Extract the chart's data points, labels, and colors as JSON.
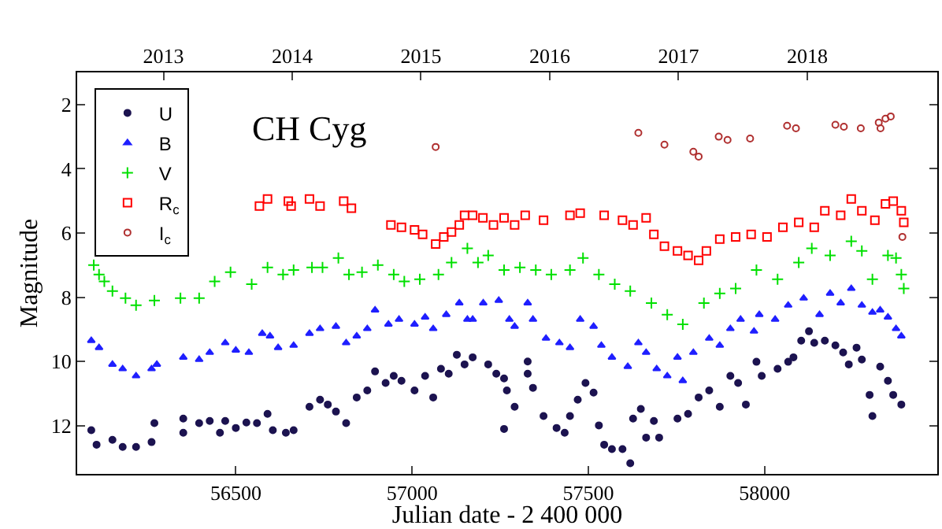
{
  "chart_data": {
    "type": "scatter",
    "title": "CH Cyg",
    "xlabel": "Julian date - 2 400 000",
    "ylabel": "Magnitude",
    "xlim": [
      56050,
      58490
    ],
    "xticks": [
      56500,
      57000,
      57500,
      58000
    ],
    "ylim": [
      13.5,
      1
    ],
    "yticks": [
      2,
      4,
      6,
      8,
      10,
      12
    ],
    "x2lim": [
      2012.33,
      2019.01
    ],
    "x2ticks": [
      2013,
      2014,
      2015,
      2016,
      2017,
      2018
    ],
    "legend": "top left",
    "series": [
      {
        "name": "U",
        "color": "#1c1350",
        "marker": "circle",
        "x": [
          56090,
          56105,
          56150,
          56179,
          56217,
          56261,
          56269,
          56351,
          56351,
          56396,
          56426,
          56455,
          56470,
          56500,
          56530,
          56560,
          56590,
          56605,
          56642,
          56664,
          56709,
          56739,
          56761,
          56784,
          56813,
          56843,
          56873,
          56895,
          56925,
          56948,
          56970,
          57007,
          57037,
          57060,
          57082,
          57104,
          57127,
          57149,
          57172,
          57216,
          57239,
          57261,
          57269,
          57291,
          57261,
          57328,
          57328,
          57343,
          57373,
          57410,
          57433,
          57448,
          57470,
          57492,
          57515,
          57530,
          57545,
          57567,
          57597,
          57619,
          57627,
          57649,
          57664,
          57686,
          57701,
          57753,
          57783,
          57813,
          57843,
          57873,
          57903,
          57925,
          57947,
          57977,
          57992,
          58037,
          58067,
          58082,
          58104,
          58126,
          58141,
          58171,
          58201,
          58223,
          58239,
          58261,
          58276,
          58298,
          58306,
          58328,
          58350,
          58365,
          58388
        ],
        "values": [
          12.14,
          12.59,
          12.44,
          12.66,
          12.66,
          12.51,
          11.92,
          11.78,
          12.22,
          11.92,
          11.85,
          12.22,
          11.85,
          12.07,
          11.9,
          11.92,
          11.63,
          12.14,
          12.22,
          12.14,
          11.41,
          11.19,
          11.34,
          11.56,
          11.92,
          11.12,
          10.9,
          10.31,
          10.67,
          10.45,
          10.6,
          10.9,
          10.45,
          11.12,
          10.23,
          10.38,
          9.79,
          10.09,
          9.87,
          10.09,
          10.38,
          10.53,
          10.9,
          11.41,
          12.1,
          10.0,
          10.38,
          10.82,
          11.7,
          12.07,
          12.22,
          11.7,
          11.19,
          10.67,
          10.97,
          11.99,
          12.59,
          12.73,
          12.73,
          13.17,
          11.78,
          11.48,
          12.37,
          11.85,
          12.37,
          11.78,
          11.63,
          11.12,
          10.9,
          11.41,
          10.45,
          10.67,
          11.34,
          10.01,
          10.45,
          10.23,
          10.01,
          9.87,
          9.35,
          9.06,
          9.42,
          9.35,
          9.5,
          9.72,
          10.09,
          9.57,
          9.94,
          11.04,
          11.7,
          10.16,
          10.6,
          11.04,
          11.34
        ]
      },
      {
        "name": "B",
        "color": "#1f1fff",
        "marker": "triangle",
        "x": [
          56090,
          56112,
          56150,
          56179,
          56217,
          56261,
          56276,
          56351,
          56396,
          56426,
          56470,
          56500,
          56537,
          56575,
          56597,
          56620,
          56664,
          56709,
          56739,
          56784,
          56813,
          56843,
          56873,
          56895,
          56933,
          56963,
          57007,
          57037,
          57060,
          57097,
          57134,
          57157,
          57172,
          57202,
          57246,
          57276,
          57291,
          57328,
          57343,
          57380,
          57418,
          57448,
          57477,
          57515,
          57537,
          57567,
          57612,
          57642,
          57664,
          57694,
          57724,
          57753,
          57768,
          57798,
          57843,
          57873,
          57903,
          57932,
          57970,
          57985,
          58030,
          58067,
          58111,
          58156,
          58186,
          58216,
          58246,
          58276,
          58306,
          58328,
          58350,
          58373,
          58388
        ],
        "values": [
          9.35,
          9.57,
          10.09,
          10.23,
          10.45,
          10.23,
          10.09,
          9.87,
          9.94,
          9.72,
          9.42,
          9.65,
          9.72,
          9.13,
          9.21,
          9.57,
          9.5,
          9.13,
          8.98,
          8.91,
          9.42,
          9.21,
          8.98,
          8.4,
          8.84,
          8.69,
          8.84,
          8.62,
          8.98,
          8.54,
          8.18,
          8.69,
          8.69,
          8.18,
          8.1,
          8.69,
          8.91,
          8.18,
          8.69,
          9.28,
          9.42,
          9.57,
          8.69,
          8.91,
          9.5,
          9.87,
          10.16,
          9.42,
          9.72,
          10.23,
          10.45,
          9.87,
          10.6,
          9.72,
          9.28,
          9.5,
          8.98,
          8.69,
          9.06,
          8.54,
          8.69,
          8.25,
          8.03,
          8.54,
          7.88,
          8.18,
          7.73,
          8.25,
          8.47,
          8.4,
          8.62,
          8.98,
          9.21
        ]
      },
      {
        "name": "V",
        "color": "#00e000",
        "marker": "cross",
        "x": [
          56097,
          56112,
          56127,
          56150,
          56187,
          56217,
          56269,
          56343,
          56396,
          56440,
          56485,
          56545,
          56590,
          56634,
          56664,
          56716,
          56746,
          56791,
          56821,
          56858,
          56903,
          56948,
          56978,
          57022,
          57075,
          57112,
          57157,
          57187,
          57216,
          57261,
          57306,
          57351,
          57395,
          57448,
          57485,
          57530,
          57575,
          57619,
          57679,
          57724,
          57768,
          57828,
          57873,
          57918,
          57977,
          58037,
          58097,
          58134,
          58186,
          58246,
          58276,
          58306,
          58350,
          58373,
          58388,
          58395
        ],
        "values": [
          7.0,
          7.29,
          7.51,
          7.81,
          8.03,
          8.25,
          8.1,
          8.03,
          8.03,
          7.51,
          7.22,
          7.59,
          7.07,
          7.29,
          7.15,
          7.07,
          7.07,
          6.78,
          7.29,
          7.22,
          7.0,
          7.29,
          7.51,
          7.44,
          7.29,
          6.92,
          6.48,
          6.92,
          6.7,
          7.15,
          7.07,
          7.15,
          7.29,
          7.15,
          6.78,
          7.29,
          7.59,
          7.81,
          8.18,
          8.54,
          8.84,
          8.18,
          7.88,
          7.73,
          7.15,
          7.44,
          6.92,
          6.48,
          6.7,
          6.26,
          6.56,
          7.44,
          6.7,
          6.78,
          7.29,
          7.73
        ]
      },
      {
        "name": "R$_{c}$",
        "color": "#ff0000",
        "marker": "square-open",
        "x": [
          56567,
          56590,
          56649,
          56657,
          56709,
          56739,
          56806,
          56828,
          56940,
          56970,
          57007,
          57030,
          57067,
          57090,
          57112,
          57134,
          57149,
          57172,
          57201,
          57231,
          57261,
          57291,
          57321,
          57373,
          57448,
          57477,
          57545,
          57597,
          57627,
          57664,
          57686,
          57716,
          57753,
          57783,
          57813,
          57835,
          57873,
          57918,
          57962,
          58007,
          58052,
          58097,
          58141,
          58171,
          58216,
          58246,
          58276,
          58313,
          58343,
          58365,
          58388,
          58395
        ],
        "values": [
          5.16,
          4.94,
          5.01,
          5.16,
          4.94,
          5.16,
          5.01,
          5.23,
          5.75,
          5.82,
          5.9,
          6.04,
          6.34,
          6.12,
          5.97,
          5.75,
          5.45,
          5.45,
          5.53,
          5.75,
          5.53,
          5.75,
          5.45,
          5.6,
          5.45,
          5.38,
          5.45,
          5.6,
          5.75,
          5.53,
          6.04,
          6.41,
          6.56,
          6.7,
          6.85,
          6.56,
          6.19,
          6.12,
          6.04,
          6.12,
          5.82,
          5.67,
          5.82,
          5.31,
          5.45,
          4.94,
          5.31,
          5.6,
          5.09,
          5.01,
          5.31,
          5.67
        ]
      },
      {
        "name": "I$_{c}$",
        "color": "#b03030",
        "marker": "circle-open",
        "x": [
          57067,
          57642,
          57716,
          57798,
          57813,
          57870,
          57895,
          57959,
          58064,
          58089,
          58201,
          58225,
          58273,
          58324,
          58329,
          58343,
          58358,
          58391
        ],
        "values": [
          3.32,
          2.88,
          3.25,
          3.47,
          3.62,
          3.0,
          3.1,
          3.06,
          2.66,
          2.74,
          2.63,
          2.69,
          2.74,
          2.56,
          2.74,
          2.44,
          2.37,
          6.12
        ]
      }
    ]
  }
}
